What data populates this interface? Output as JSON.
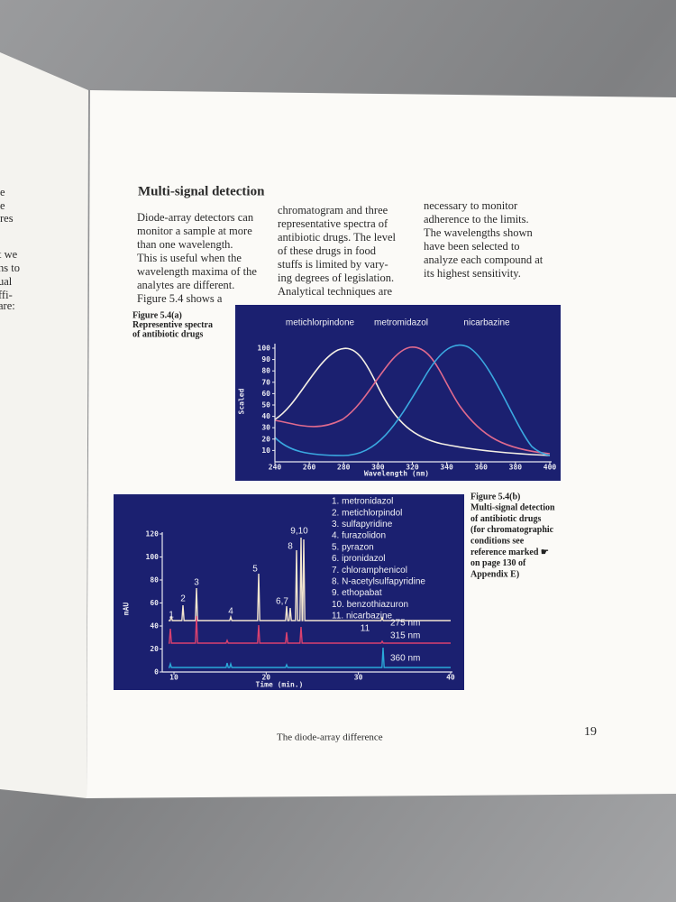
{
  "left_page": {
    "fragments": [
      "e",
      "e",
      "res",
      "t we",
      "hs to",
      "ual",
      "ffi-",
      "are:"
    ]
  },
  "page": {
    "heading": "Multi-signal detection",
    "columns": [
      [
        "Diode-array detectors can",
        "monitor a sample at more",
        "than one wavelength.",
        "This is useful when the",
        "wavelength maxima of the",
        "analytes are different.",
        "Figure 5.4 shows a"
      ],
      [
        "chromatogram and three",
        "representative spectra of",
        "antibiotic drugs. The level",
        "of these drugs in food",
        "stuffs is limited by vary-",
        "ing degrees of legislation.",
        "Analytical techniques are"
      ],
      [
        "necessary  to monitor",
        "adherence to the limits.",
        "The wavelengths shown",
        "have been selected to",
        "analyze each compound at",
        "its highest sensitivity."
      ]
    ],
    "figure_a": {
      "caption": [
        "Figure 5.4(a)",
        "Representive spectra",
        "of antibiotic drugs"
      ],
      "curve_labels": [
        "metichlorpindone",
        "metromidazol",
        "nicarbazine"
      ],
      "y_axis_label": "Scaled",
      "yticks": [
        10,
        20,
        30,
        40,
        50,
        60,
        70,
        80,
        90,
        100
      ],
      "xticks": [
        240,
        260,
        280,
        300,
        320,
        340,
        360,
        380,
        400
      ],
      "x_axis_label": "Wavelength (nm)"
    },
    "figure_b": {
      "caption": [
        "Figure 5.4(b)",
        "Multi-signal detection",
        "of antibiotic drugs",
        "(for chromatographic",
        "conditions see",
        "reference marked ☛",
        "on page 130 of",
        "Appendix E)"
      ],
      "legend": [
        "1.  metronidazol",
        "2.  metichlorpindol",
        "3.  sulfapyridine",
        "4.  furazolidon",
        "5.  pyrazon",
        "6.  ipronidazol",
        "7.  chloramphenicol",
        "8.  N-acetylsulfapyridine",
        "9.  ethopabat",
        "10.  benzothiazuron",
        "11.  nicarbazine"
      ],
      "peak_labels": [
        "1",
        "2",
        "3",
        "4",
        "5",
        "6,7",
        "8",
        "9,10",
        "11"
      ],
      "trace_labels": [
        "275 nm",
        "315 nm",
        "360 nm"
      ],
      "y_axis_label": "mAU",
      "yticks": [
        0,
        20,
        40,
        60,
        80,
        100,
        120
      ],
      "xticks": [
        10,
        20,
        30,
        40
      ],
      "x_axis_label": "Time (min.)"
    },
    "footer": {
      "text": "The diode-array difference",
      "page_number": "19"
    }
  }
}
